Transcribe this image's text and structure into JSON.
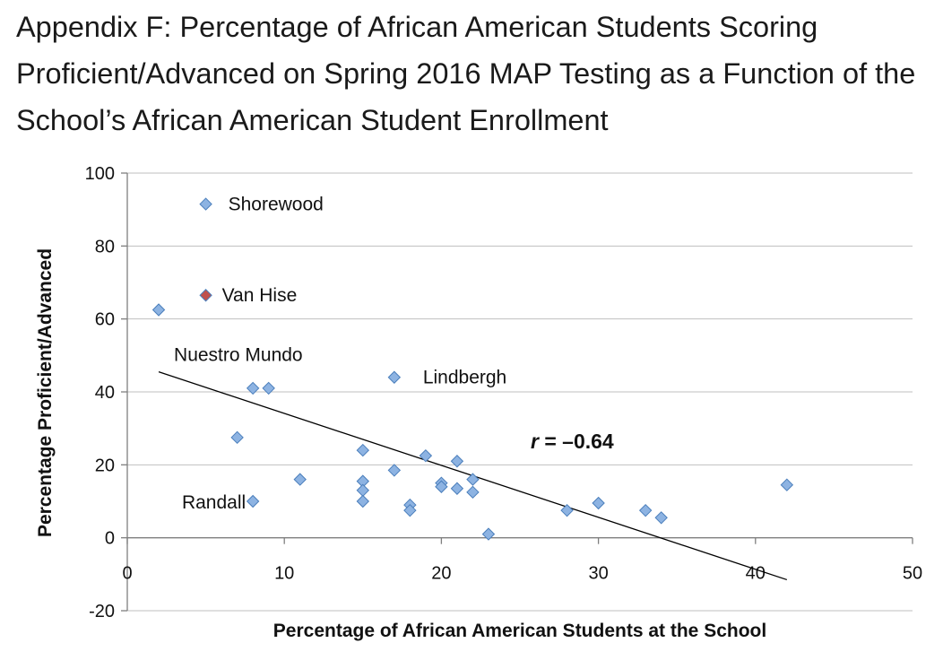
{
  "page": {
    "title": "Appendix F: Percentage of African American Students Scoring Proficient/Advanced on Spring 2016 MAP Testing as a Function of the School’s African American Student Enrollment"
  },
  "chart_data": {
    "type": "scatter",
    "title": "Appendix F: Percentage of African American Students Scoring Proficient/Advanced on Spring 2016 MAP Testing as a Function of the School’s African American Student Enrollment",
    "xlabel": "Percentage of African American Students at the School",
    "ylabel": "Percentage Proficient/Advanced",
    "xlim": [
      0,
      50
    ],
    "ylim": [
      -20,
      100
    ],
    "x_ticks": [
      0,
      10,
      20,
      30,
      40,
      50
    ],
    "y_ticks": [
      -20,
      0,
      20,
      40,
      60,
      80,
      100
    ],
    "grid": "horizontal",
    "legend": "none",
    "colors": {
      "point_fill": "#8db3e2",
      "point_stroke": "#4a7ebb",
      "highlight_fill": "#c0504d",
      "trendline": "#000000",
      "gridline": "#bfbfbf"
    },
    "points": [
      {
        "x": 5,
        "y": 91.5,
        "label": "Shorewood"
      },
      {
        "x": 5,
        "y": 66.5,
        "label": "Van Hise",
        "highlight": true
      },
      {
        "x": 2,
        "y": 62.5,
        "label": "Nuestro Mundo"
      },
      {
        "x": 17,
        "y": 44,
        "label": "Lindbergh"
      },
      {
        "x": 8,
        "y": 41
      },
      {
        "x": 9,
        "y": 41
      },
      {
        "x": 7,
        "y": 27.5
      },
      {
        "x": 15,
        "y": 24
      },
      {
        "x": 19,
        "y": 22.5
      },
      {
        "x": 21,
        "y": 21
      },
      {
        "x": 17,
        "y": 18.5
      },
      {
        "x": 11,
        "y": 16
      },
      {
        "x": 22,
        "y": 16
      },
      {
        "x": 15,
        "y": 15.5
      },
      {
        "x": 20,
        "y": 15
      },
      {
        "x": 20,
        "y": 14
      },
      {
        "x": 42,
        "y": 14.5
      },
      {
        "x": 21,
        "y": 13.5
      },
      {
        "x": 15,
        "y": 13
      },
      {
        "x": 22,
        "y": 12.5
      },
      {
        "x": 15,
        "y": 10
      },
      {
        "x": 8,
        "y": 10,
        "label": "Randall"
      },
      {
        "x": 30,
        "y": 9.5
      },
      {
        "x": 18,
        "y": 9
      },
      {
        "x": 18,
        "y": 7.5
      },
      {
        "x": 28,
        "y": 7.5
      },
      {
        "x": 33,
        "y": 7.5
      },
      {
        "x": 34,
        "y": 5.5
      },
      {
        "x": 23,
        "y": 1
      }
    ],
    "trendline": {
      "x1": 2,
      "y1": 45.5,
      "x2": 42,
      "y2": -11.5
    },
    "annotation": {
      "r_label": "r",
      "r_value": " = –0.64"
    }
  }
}
